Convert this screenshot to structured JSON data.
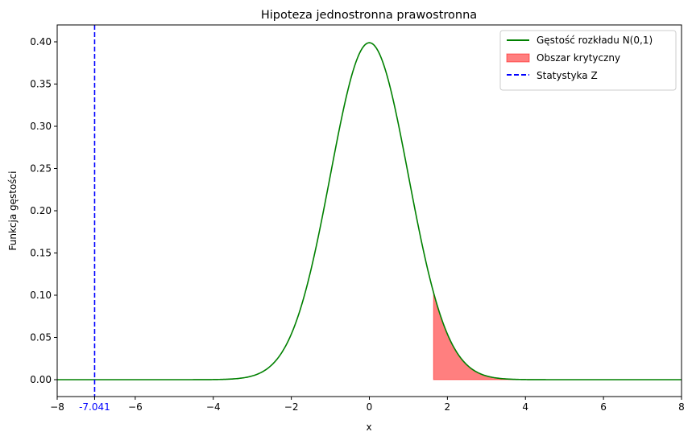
{
  "chart_data": {
    "type": "line",
    "title": "Hipoteza jednostronna prawostronna",
    "xlabel": "x",
    "ylabel": "Funkcja gęstości",
    "xlim": [
      -8,
      8
    ],
    "ylim": [
      -0.02,
      0.42
    ],
    "xticks": [
      -8,
      -6,
      -4,
      -2,
      0,
      2,
      4,
      6,
      8
    ],
    "xtick_labels": [
      "−8",
      "−6",
      "−4",
      "−2",
      "0",
      "2",
      "4",
      "6",
      "8"
    ],
    "yticks": [
      0.0,
      0.05,
      0.1,
      0.15,
      0.2,
      0.25,
      0.3,
      0.35,
      0.4
    ],
    "ytick_labels": [
      "0.00",
      "0.05",
      "0.10",
      "0.15",
      "0.20",
      "0.25",
      "0.30",
      "0.35",
      "0.40"
    ],
    "grid": false,
    "legend_position": "top-right",
    "series": [
      {
        "name": "Gęstość rozkładu N(0,1)",
        "kind": "normal_pdf",
        "mean": 0,
        "sd": 1,
        "color": "#008000"
      }
    ],
    "critical_region": {
      "name": "Obszar krytyczny",
      "x_from": 1.645,
      "x_to": 8,
      "color": "#ff0000",
      "opacity": 0.5
    },
    "statistic_line": {
      "name": "Statystyka Z",
      "x": -7.041,
      "label": "-7.041",
      "color": "#0000ff",
      "style": "dashed"
    }
  }
}
